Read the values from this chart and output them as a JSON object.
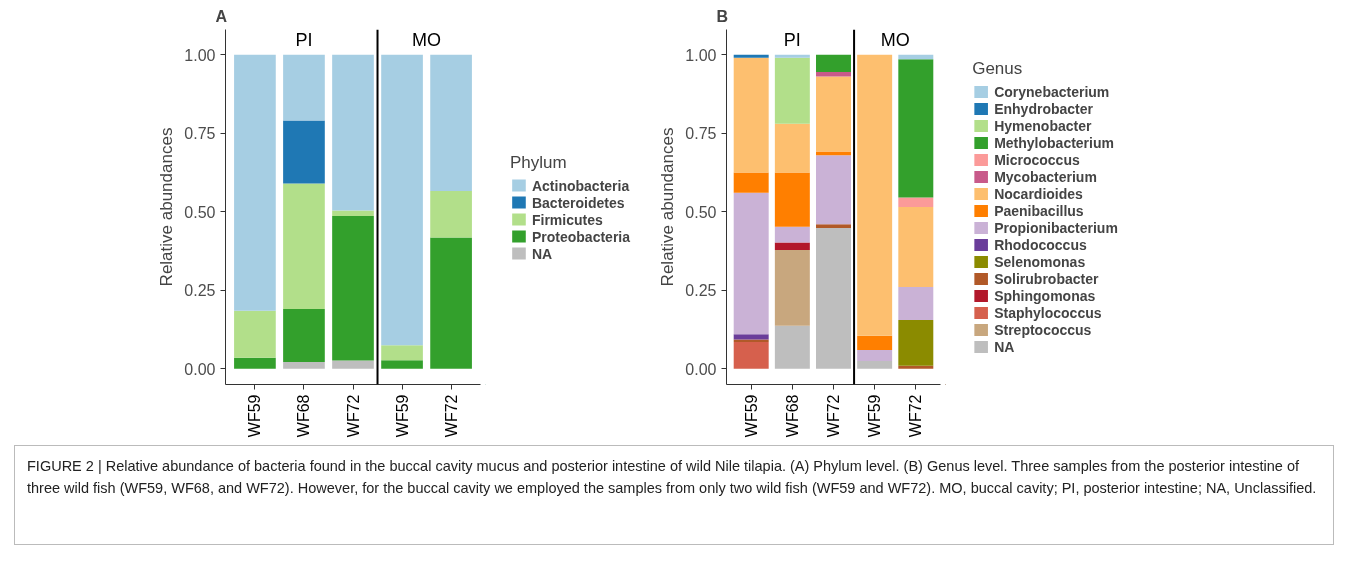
{
  "chart_data": [
    {
      "type": "bar",
      "stacked": true,
      "title": "A",
      "ylabel": "Relative abundances",
      "legend_title": "Phylum",
      "legend": "right",
      "grid": false,
      "categories": [
        "WF59",
        "WF68",
        "WF72",
        "WF59",
        "WF72"
      ],
      "ylim": [
        -0.05,
        1.08
      ],
      "yticks": [
        {
          "value": 0,
          "label": "0.00"
        },
        {
          "value": 0.25,
          "label": "0.25"
        },
        {
          "value": 0.5,
          "label": "0.50"
        },
        {
          "value": 0.75,
          "label": "0.75"
        },
        {
          "value": 1,
          "label": "1.00"
        }
      ],
      "annotations": [
        "PI",
        "MO",
        "FIGURE 2 | Relative abundance of bacteria found in the buccal cavity mucus and posterior intestine of wild Nile tilapia. (A) Phylum level. (B) Genus level. Three samples from the posterior intestine of three wild fish (WF59, WF68, and WF72). However, for the buccal cavity we employed the samples from only two wild fish (WF59 and WF72). MO, buccal cavity; PI, posterior intestine; NA, Unclassified."
      ],
      "series": [
        {
          "name": "NA",
          "color": "#bebebe",
          "values": [
            0,
            0.022,
            0.026,
            0,
            0
          ]
        },
        {
          "name": "Proteobacteria",
          "color": "#33a02c",
          "values": [
            0.035,
            0.168,
            0.46,
            0.027,
            0.418
          ]
        },
        {
          "name": "Firmicutes",
          "color": "#b2df8a",
          "values": [
            0.15,
            0.4,
            0.018,
            0.048,
            0.148
          ]
        },
        {
          "name": "Bacteroidetes",
          "color": "#1f78b4",
          "values": [
            0,
            0.2,
            0,
            0,
            0
          ]
        },
        {
          "name": "Actinobacteria",
          "color": "#a6cee3",
          "values": [
            0.815,
            0.21,
            0.496,
            0.925,
            0.434
          ]
        }
      ]
    },
    {
      "type": "bar",
      "stacked": true,
      "title": "B",
      "ylabel": "Relative abundances",
      "legend_title": "Genus",
      "legend": "right",
      "grid": false,
      "categories": [
        "WF59",
        "WF68",
        "WF72",
        "WF59",
        "WF72"
      ],
      "ylim": [
        -0.05,
        1.08
      ],
      "yticks": [
        {
          "value": 0,
          "label": "0.00"
        },
        {
          "value": 0.25,
          "label": "0.25"
        },
        {
          "value": 0.5,
          "label": "0.50"
        },
        {
          "value": 0.75,
          "label": "0.75"
        },
        {
          "value": 1,
          "label": "1.00"
        }
      ],
      "annotations": [
        "PI",
        "MO"
      ],
      "series": [
        {
          "name": "NA",
          "color": "#bebebe",
          "values": [
            0,
            0.137,
            0.448,
            0.025,
            0
          ]
        },
        {
          "name": "Streptococcus",
          "color": "#c8a77e",
          "values": [
            0,
            0.241,
            0,
            0,
            0
          ]
        },
        {
          "name": "Staphylococcus",
          "color": "#d6604d",
          "values": [
            0.085,
            0,
            0,
            0,
            0
          ]
        },
        {
          "name": "Sphingomonas",
          "color": "#b2182b",
          "values": [
            0,
            0.024,
            0,
            0,
            0
          ]
        },
        {
          "name": "Solirubrobacter",
          "color": "#b15928",
          "values": [
            0.008,
            0,
            0.012,
            0,
            0.01
          ]
        },
        {
          "name": "Selenomonas",
          "color": "#8b8b00",
          "values": [
            0,
            0,
            0,
            0,
            0.145
          ]
        },
        {
          "name": "Rhodococcus",
          "color": "#6a3d9a",
          "values": [
            0.017,
            0,
            0,
            0,
            0
          ]
        },
        {
          "name": "Propionibacterium",
          "color": "#cab2d6",
          "values": [
            0.45,
            0.05,
            0.22,
            0.035,
            0.105
          ]
        },
        {
          "name": "Paenibacillus",
          "color": "#ff7f00",
          "values": [
            0.065,
            0.173,
            0.012,
            0.045,
            0
          ]
        },
        {
          "name": "Nocardioides",
          "color": "#fdbf6f",
          "values": [
            0.365,
            0.155,
            0.238,
            0.895,
            0.255
          ]
        },
        {
          "name": "Mycobacterium",
          "color": "#c85a8a",
          "values": [
            0,
            0,
            0.015,
            0,
            0
          ]
        },
        {
          "name": "Micrococcus",
          "color": "#fb9a99",
          "values": [
            0,
            0,
            0,
            0,
            0.03
          ]
        },
        {
          "name": "Methylobacterium",
          "color": "#33a02c",
          "values": [
            0,
            0,
            0.055,
            0,
            0.44
          ]
        },
        {
          "name": "Hymenobacter",
          "color": "#b2df8a",
          "values": [
            0,
            0.21,
            0,
            0,
            0
          ]
        },
        {
          "name": "Enhydrobacter",
          "color": "#1f78b4",
          "values": [
            0.01,
            0,
            0,
            0,
            0
          ]
        },
        {
          "name": "Corynebacterium",
          "color": "#a6cee3",
          "values": [
            0,
            0.01,
            0,
            0,
            0.015
          ]
        }
      ]
    }
  ]
}
